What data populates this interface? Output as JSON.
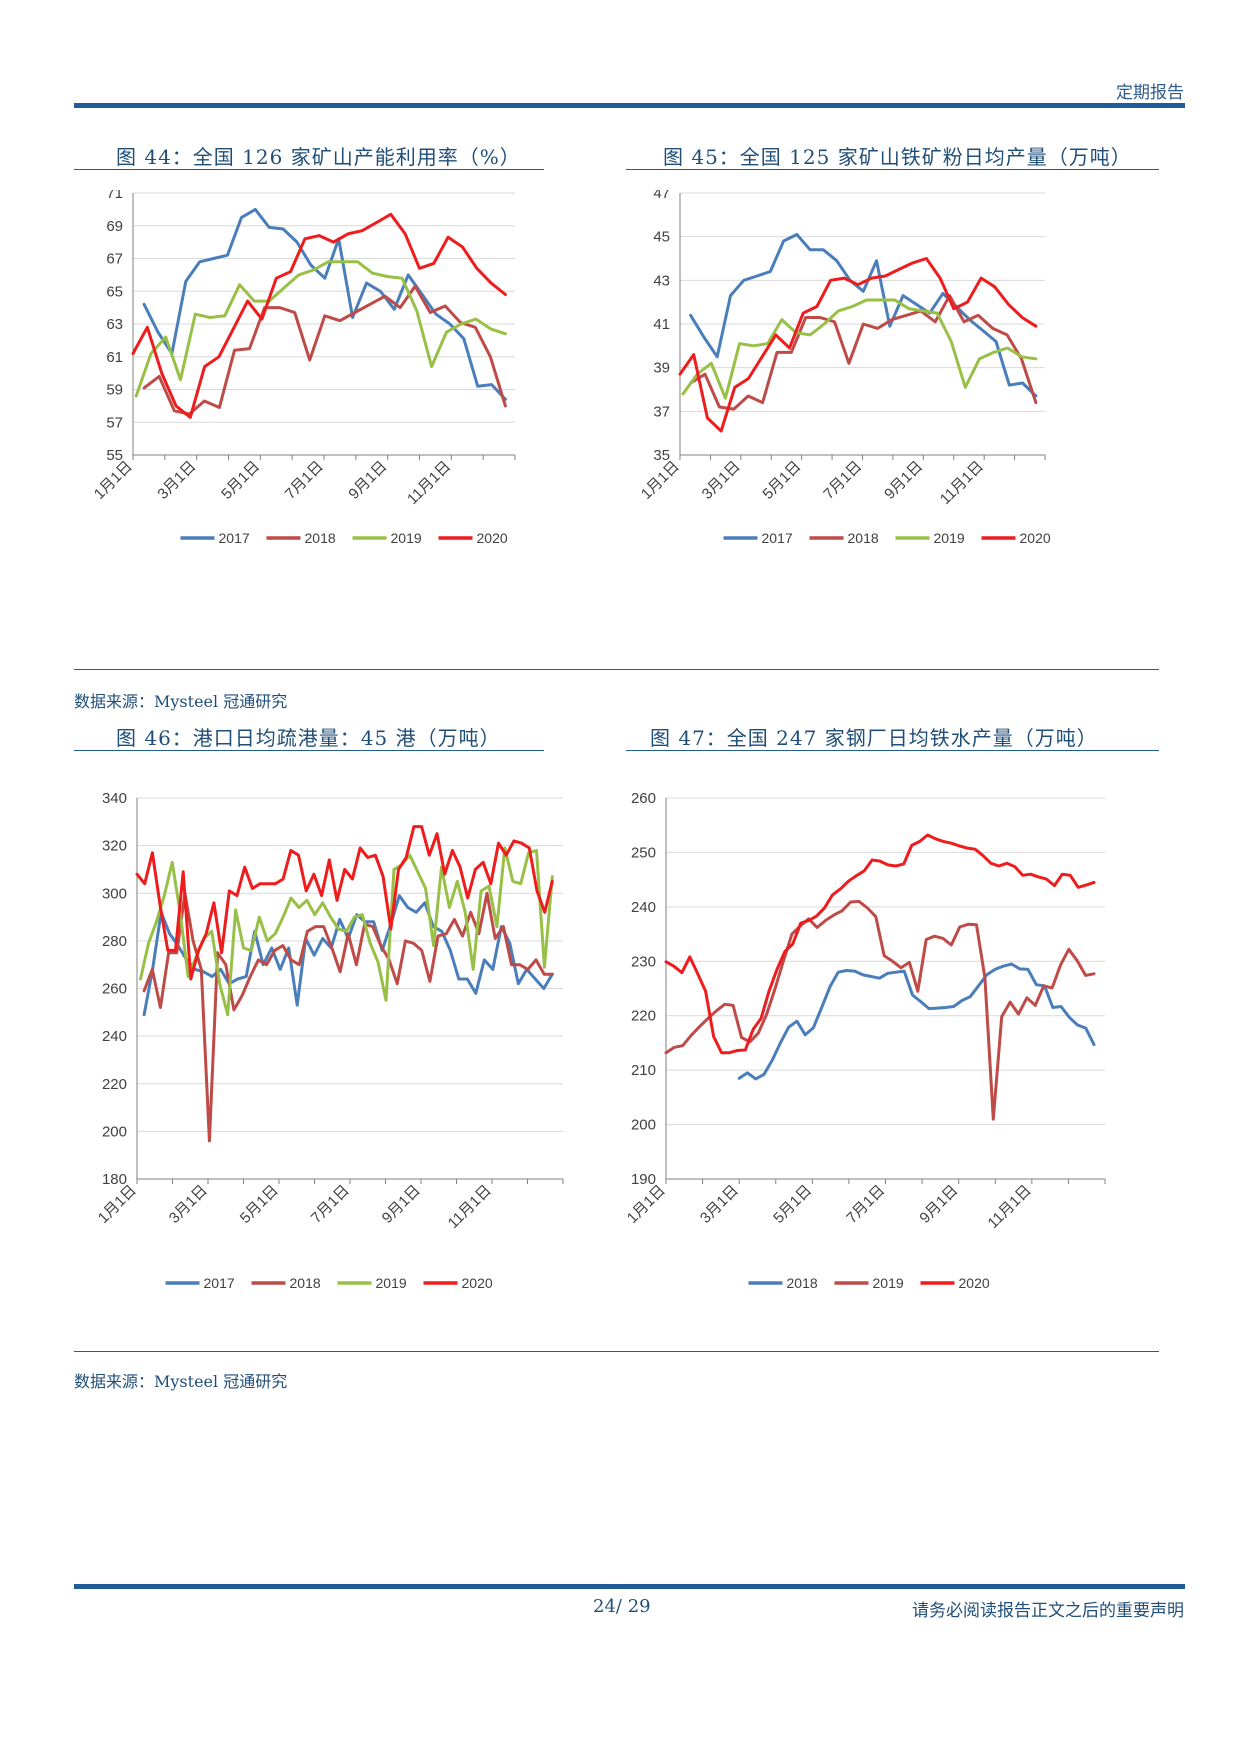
{
  "header": {
    "label": "定期报告"
  },
  "source_label": "数据来源：Mysteel  冠通研究",
  "footer": {
    "page": "24/  29",
    "disclaimer": "请务必阅读报告正文之后的重要声明"
  },
  "colors": {
    "2017": "#4a7ebb",
    "2018": "#be4b48",
    "2019": "#98c047",
    "2020": "#ee1c1c"
  },
  "chart_data": [
    {
      "id": "c44",
      "title": "图 44：全国 126 家矿山产能利用率（%）",
      "type": "line",
      "ylim": [
        55,
        71
      ],
      "ystep": 2,
      "xticks": [
        "1月1日",
        "3月1日",
        "5月1日",
        "7月1日",
        "9月1日",
        "11月1日"
      ],
      "series": [
        {
          "name": "2017",
          "color": "#4a7ebb",
          "start": 0.35,
          "values": [
            64.2,
            62.5,
            61.2,
            65.6,
            66.8,
            67.0,
            67.2,
            69.5,
            70.0,
            68.9,
            68.8,
            68.0,
            66.6,
            65.8,
            68.2,
            63.4,
            65.5,
            65.0,
            63.9,
            66.0,
            64.8,
            63.6,
            63.0,
            62.1,
            59.2,
            59.3,
            58.4
          ]
        },
        {
          "name": "2018",
          "color": "#be4b48",
          "start": 0.35,
          "values": [
            59.1,
            59.8,
            57.7,
            57.5,
            58.3,
            57.9,
            61.4,
            61.5,
            64.0,
            64.0,
            63.7,
            60.8,
            63.5,
            63.2,
            63.7,
            64.2,
            64.7,
            64.0,
            65.3,
            63.7,
            64.1,
            63.1,
            62.8,
            61.0,
            58.0
          ]
        },
        {
          "name": "2019",
          "color": "#98c047",
          "start": 0.1,
          "values": [
            58.6,
            61.2,
            62.2,
            59.6,
            63.6,
            63.4,
            63.5,
            65.4,
            64.4,
            64.4,
            65.2,
            66.0,
            66.3,
            66.8,
            66.8,
            66.8,
            66.1,
            65.9,
            65.8,
            63.8,
            60.4,
            62.5,
            63.0,
            63.3,
            62.7,
            62.4
          ]
        },
        {
          "name": "2020",
          "color": "#ee1c1c",
          "start": 0.0,
          "values": [
            61.2,
            62.8,
            60.0,
            58.0,
            57.3,
            60.4,
            61.0,
            62.7,
            64.4,
            63.3,
            65.8,
            66.2,
            68.2,
            68.4,
            68.0,
            68.5,
            68.7,
            69.2,
            69.7,
            68.5,
            66.4,
            66.7,
            68.3,
            67.7,
            66.4,
            65.5,
            64.8
          ]
        }
      ]
    },
    {
      "id": "c45",
      "title": "图 45：全国 125 家矿山铁矿粉日均产量（万吨）",
      "type": "line",
      "ylim": [
        35,
        47
      ],
      "ystep": 2,
      "xticks": [
        "1月1日",
        "3月1日",
        "5月1日",
        "7月1日",
        "9月1日",
        "11月1日"
      ],
      "series": [
        {
          "name": "2017",
          "color": "#4a7ebb",
          "start": 0.35,
          "values": [
            41.4,
            40.4,
            39.5,
            42.3,
            43.0,
            43.2,
            43.4,
            44.8,
            45.1,
            44.4,
            44.4,
            43.9,
            43.0,
            42.5,
            43.9,
            40.9,
            42.3,
            41.9,
            41.5,
            42.4,
            41.8,
            41.2,
            40.7,
            40.2,
            38.2,
            38.3,
            37.7
          ]
        },
        {
          "name": "2018",
          "color": "#be4b48",
          "start": 0.35,
          "values": [
            38.3,
            38.7,
            37.2,
            37.1,
            37.7,
            37.4,
            39.7,
            39.7,
            41.3,
            41.3,
            41.1,
            39.2,
            41.0,
            40.8,
            41.2,
            41.4,
            41.6,
            41.1,
            42.3,
            41.1,
            41.4,
            40.8,
            40.5,
            39.4,
            37.4
          ]
        },
        {
          "name": "2019",
          "color": "#98c047",
          "start": 0.1,
          "values": [
            37.8,
            38.7,
            39.2,
            37.6,
            40.1,
            40.0,
            40.1,
            41.2,
            40.6,
            40.5,
            41.0,
            41.6,
            41.8,
            42.1,
            42.1,
            42.1,
            41.7,
            41.6,
            41.5,
            40.2,
            38.1,
            39.4,
            39.7,
            39.9,
            39.5,
            39.4
          ]
        },
        {
          "name": "2020",
          "color": "#ee1c1c",
          "start": 0.0,
          "values": [
            38.7,
            39.6,
            36.7,
            36.1,
            38.1,
            38.5,
            39.5,
            40.5,
            39.9,
            41.5,
            41.8,
            43.0,
            43.1,
            42.8,
            43.1,
            43.2,
            43.5,
            43.8,
            44.0,
            43.1,
            41.7,
            42.0,
            43.1,
            42.7,
            41.9,
            41.3,
            40.9
          ]
        }
      ]
    },
    {
      "id": "c46",
      "title": "图 46：港口日均疏港量：45 港（万吨）",
      "type": "line",
      "ylim": [
        180,
        340
      ],
      "ystep": 20,
      "xticks": [
        "1月1日",
        "3月1日",
        "5月1日",
        "7月1日",
        "9月1日",
        "11月1日"
      ],
      "series": [
        {
          "name": "2017",
          "color": "#4a7ebb",
          "start": 0.2,
          "values": [
            249,
            268,
            292,
            283,
            278,
            272,
            268,
            267,
            265,
            268,
            262,
            264,
            265,
            284,
            270,
            277,
            268,
            277,
            253,
            281,
            274,
            281,
            277,
            289,
            281,
            291,
            288,
            288,
            276,
            287,
            299,
            294,
            292,
            296,
            286,
            284,
            276,
            264,
            264,
            258,
            272,
            268,
            286,
            279,
            262,
            268,
            264,
            260,
            266
          ]
        },
        {
          "name": "2018",
          "color": "#be4b48",
          "start": 0.2,
          "values": [
            259,
            268,
            252,
            275,
            275,
            300,
            280,
            268,
            196,
            275,
            270,
            251,
            257,
            265,
            272,
            270,
            276,
            278,
            272,
            270,
            284,
            286,
            286,
            277,
            267,
            283,
            270,
            287,
            286,
            278,
            272,
            262,
            280,
            279,
            276,
            263,
            282,
            283,
            289,
            282,
            292,
            283,
            300,
            281,
            286,
            270,
            270,
            268,
            272,
            266,
            266
          ]
        },
        {
          "name": "2019",
          "color": "#98c047",
          "start": 0.1,
          "values": [
            264,
            279,
            288,
            299,
            313,
            292,
            265,
            273,
            281,
            284,
            262,
            249,
            293,
            277,
            276,
            290,
            280,
            283,
            290,
            298,
            294,
            297,
            291,
            296,
            290,
            285,
            284,
            290,
            291,
            279,
            271,
            255,
            310,
            312,
            316,
            309,
            302,
            278,
            311,
            294,
            305,
            292,
            268,
            301,
            303,
            286,
            319,
            305,
            304,
            317,
            318,
            269,
            307
          ]
        },
        {
          "name": "2020",
          "color": "#ee1c1c",
          "start": 0.0,
          "values": [
            308,
            304,
            317,
            295,
            276,
            276,
            309,
            264,
            276,
            283,
            296,
            275,
            301,
            299,
            311,
            302,
            304,
            304,
            304,
            306,
            318,
            316,
            301,
            308,
            299,
            314,
            297,
            310,
            306,
            319,
            315,
            316,
            307,
            285,
            310,
            315,
            328,
            328,
            316,
            325,
            308,
            318,
            311,
            298,
            310,
            313,
            304,
            321,
            316,
            322,
            321,
            319,
            301,
            292,
            305
          ]
        }
      ]
    },
    {
      "id": "c47",
      "title": "图 47：全国 247 家钢厂日均铁水产量（万吨）",
      "type": "line",
      "ylim": [
        190,
        260
      ],
      "ystep": 10,
      "xticks": [
        "1月1日",
        "3月1日",
        "5月1日",
        "7月1日",
        "9月1日",
        "11月1日"
      ],
      "series": [
        {
          "name": "2018",
          "color": "#4a7ebb",
          "start": 2.0,
          "values": [
            208.5,
            209.5,
            208.4,
            209.2,
            211.8,
            215.0,
            217.9,
            219.0,
            216.5,
            217.8,
            221.5,
            225.3,
            228.0,
            228.3,
            228.2,
            227.5,
            227.2,
            226.9,
            227.8,
            228.0,
            228.2,
            223.8,
            222.6,
            221.3,
            221.4,
            221.5,
            221.7,
            222.8,
            223.5,
            225.5,
            227.5,
            228.5,
            229.1,
            229.5,
            228.6,
            228.5,
            225.7,
            225.5,
            221.5,
            221.7,
            219.7,
            218.3,
            217.7,
            214.7
          ]
        },
        {
          "name": "2019",
          "color": "#be4b48",
          "start": 0.0,
          "values": [
            213.2,
            214.2,
            214.5,
            216.4,
            218.0,
            219.5,
            220.9,
            222.1,
            221.9,
            216.0,
            215.2,
            216.8,
            220.3,
            225.0,
            230.1,
            235.0,
            236.5,
            237.8,
            236.2,
            237.5,
            238.5,
            239.3,
            240.9,
            241.0,
            239.8,
            238.2,
            231.0,
            230.0,
            228.8,
            229.8,
            224.5,
            234.0,
            234.6,
            234.2,
            233.0,
            236.3,
            236.8,
            236.7,
            227.0,
            201.0,
            219.8,
            222.5,
            220.3,
            223.3,
            221.9,
            225.5,
            225.1,
            229.3,
            232.2,
            230.1,
            227.4,
            227.7
          ]
        },
        {
          "name": "2020",
          "color": "#ee1c1c",
          "start": 0.0,
          "values": [
            229.9,
            229.1,
            227.9,
            230.8,
            227.7,
            224.5,
            216.2,
            213.2,
            213.2,
            213.6,
            213.7,
            217.5,
            219.5,
            224.5,
            228.5,
            231.8,
            233.2,
            237.0,
            237.5,
            238.3,
            239.8,
            242.2,
            243.3,
            244.7,
            245.7,
            246.6,
            248.6,
            248.4,
            247.7,
            247.5,
            247.9,
            251.3,
            252.0,
            253.2,
            252.5,
            252.0,
            251.7,
            251.2,
            250.8,
            250.6,
            249.4,
            248.0,
            247.5,
            248.0,
            247.4,
            245.8,
            246.0,
            245.5,
            245.1,
            243.9,
            246.0,
            245.8,
            243.6,
            244.0,
            244.5
          ]
        }
      ]
    }
  ]
}
